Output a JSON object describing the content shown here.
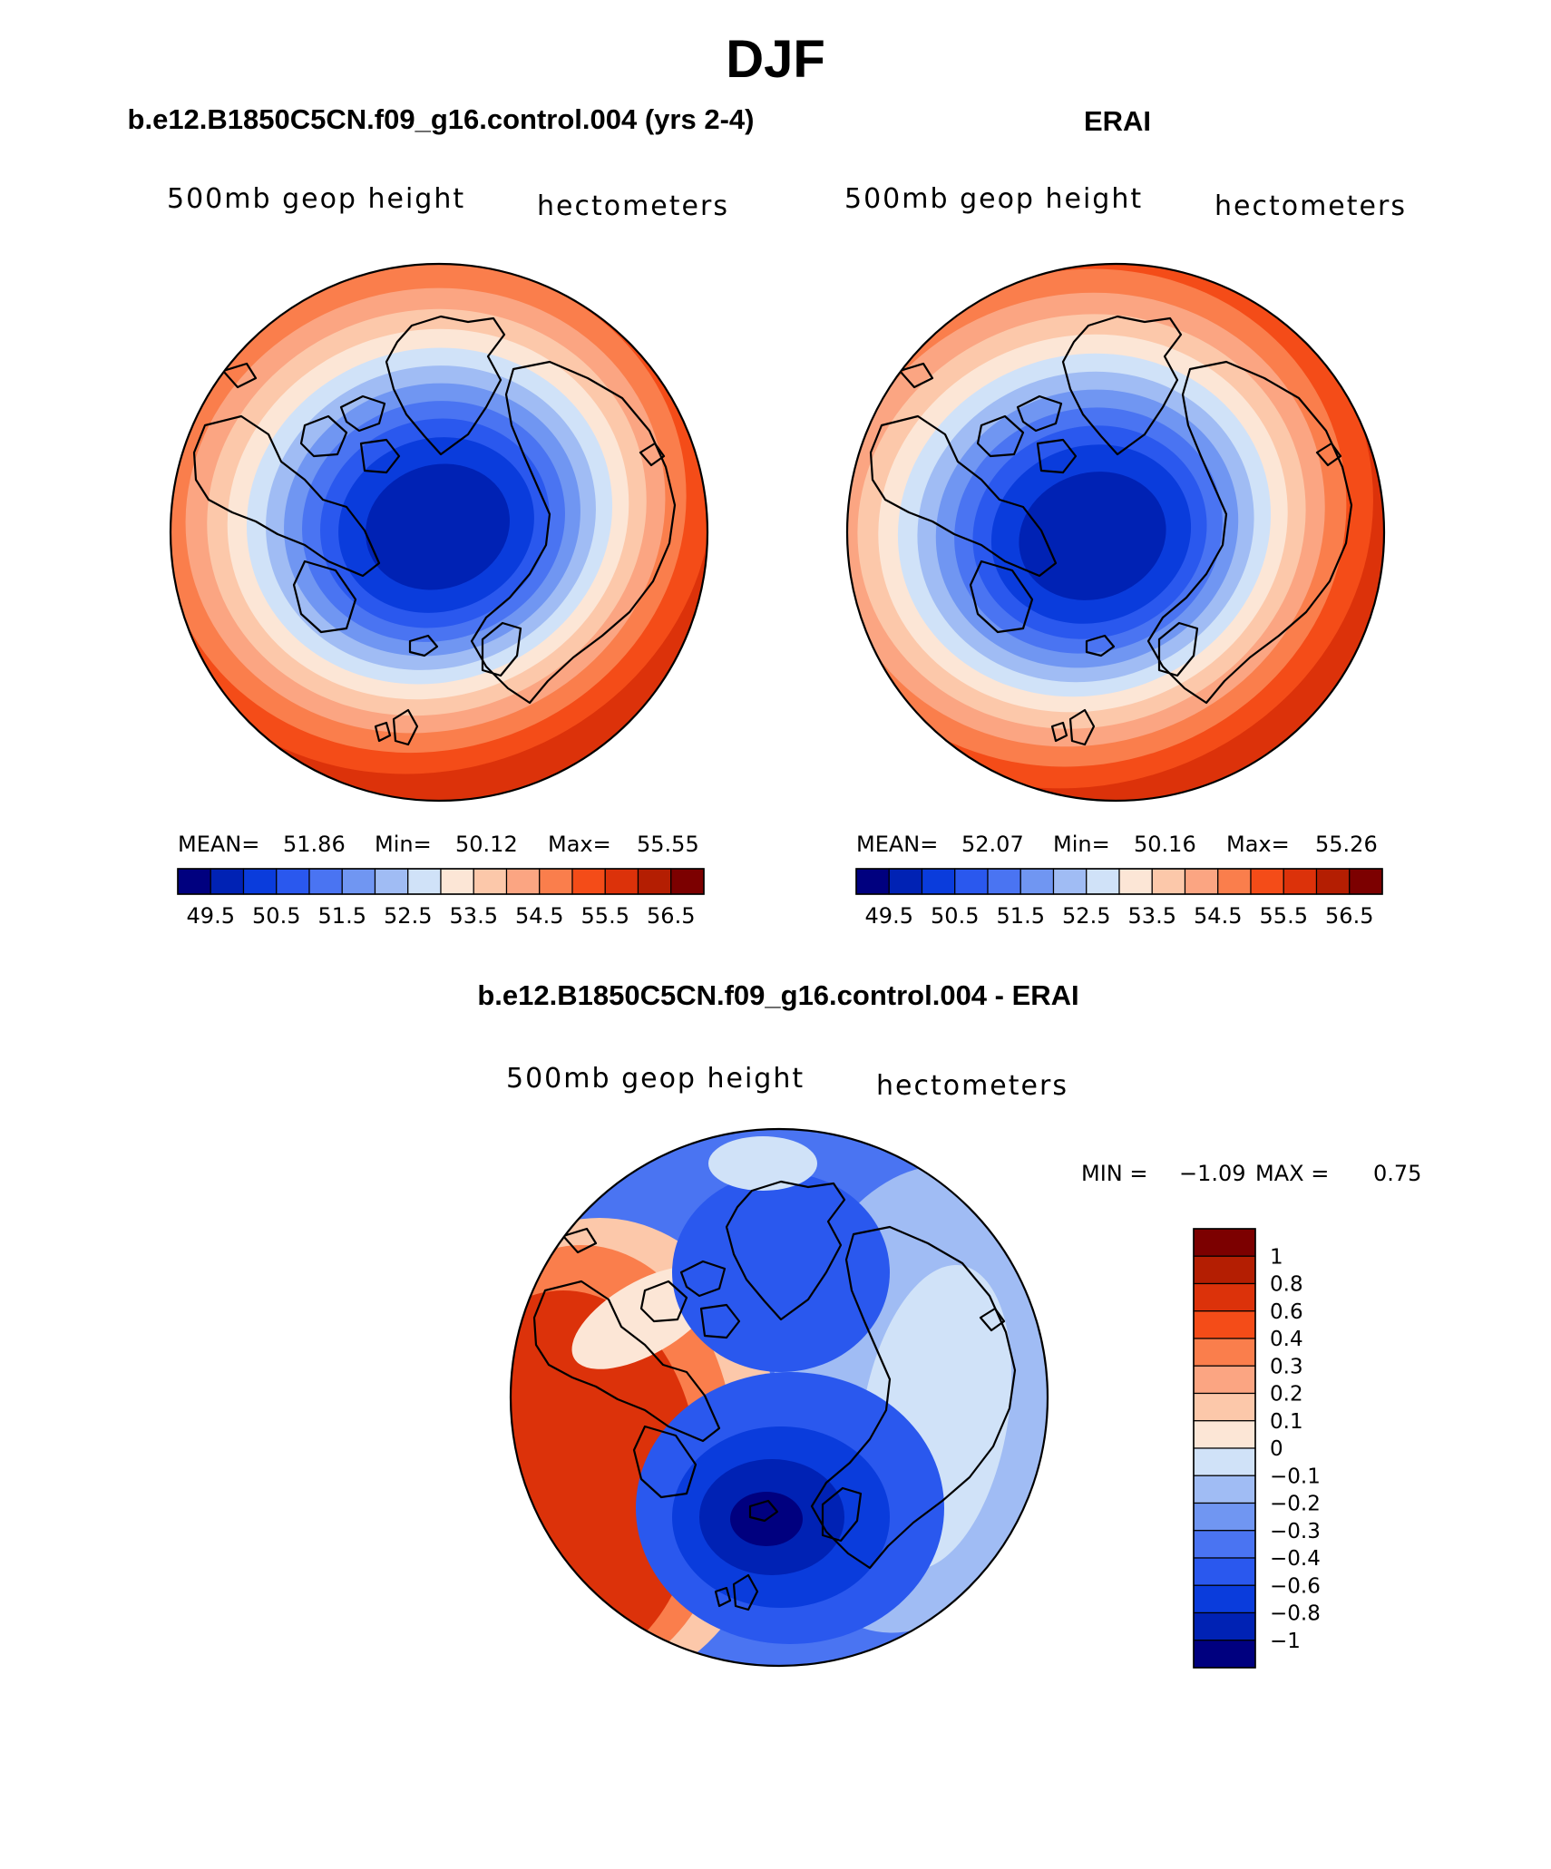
{
  "suptitle": "DJF",
  "panels": [
    {
      "title": "b.e12.B1850C5CN.f09_g16.control.004 (yrs 2-4)",
      "left_label": "500mb geop height",
      "right_label": "hectometers",
      "stats": {
        "mean_label": "MEAN=",
        "mean": "51.86",
        "min_label": "Min=",
        "min": "50.12",
        "max_label": "Max=",
        "max": "55.55"
      }
    },
    {
      "title": "ERAI",
      "left_label": "500mb geop height",
      "right_label": "hectometers",
      "stats": {
        "mean_label": "MEAN=",
        "mean": "52.07",
        "min_label": "Min=",
        "min": "50.16",
        "max_label": "Max=",
        "max": "55.26"
      }
    },
    {
      "title": "b.e12.B1850C5CN.f09_g16.control.004 - ERAI",
      "left_label": "500mb geop height",
      "right_label": "hectometers",
      "stats": {
        "min_label": "MIN =",
        "min": "−1.09",
        "max_label": "MAX =",
        "max": "0.75"
      }
    }
  ],
  "chart_data": [
    {
      "type": "heatmap",
      "projection": "north polar stereographic",
      "title": "b.e12.B1850C5CN.f09_g16.control.004 (yrs 2-4)",
      "variable": "500mb geop height",
      "units": "hectometers",
      "mean": 51.86,
      "min": 50.12,
      "max": 55.55,
      "colorbar_orientation": "horizontal",
      "levels": [
        49.5,
        50,
        50.5,
        51,
        51.5,
        52,
        52.5,
        53,
        53.5,
        54,
        54.5,
        55,
        55.5,
        56,
        56.5
      ],
      "tick_labels": [
        "49.5",
        "50.5",
        "51.5",
        "52.5",
        "53.5",
        "54.5",
        "55.5",
        "56.5"
      ],
      "colors": [
        "#00007f",
        "#0022b4",
        "#0a3cdc",
        "#2a58ee",
        "#4a74f2",
        "#7096f2",
        "#a0bcf4",
        "#d0e2f8",
        "#fce6d6",
        "#fcc8aa",
        "#fba582",
        "#fa7e4c",
        "#f44c18",
        "#dc320a",
        "#b41e02",
        "#7c0000"
      ]
    },
    {
      "type": "heatmap",
      "projection": "north polar stereographic",
      "title": "ERAI",
      "variable": "500mb geop height",
      "units": "hectometers",
      "mean": 52.07,
      "min": 50.16,
      "max": 55.26,
      "colorbar_orientation": "horizontal",
      "levels": [
        49.5,
        50,
        50.5,
        51,
        51.5,
        52,
        52.5,
        53,
        53.5,
        54,
        54.5,
        55,
        55.5,
        56,
        56.5
      ],
      "tick_labels": [
        "49.5",
        "50.5",
        "51.5",
        "52.5",
        "53.5",
        "54.5",
        "55.5",
        "56.5"
      ],
      "colors": [
        "#00007f",
        "#0022b4",
        "#0a3cdc",
        "#2a58ee",
        "#4a74f2",
        "#7096f2",
        "#a0bcf4",
        "#d0e2f8",
        "#fce6d6",
        "#fcc8aa",
        "#fba582",
        "#fa7e4c",
        "#f44c18",
        "#dc320a",
        "#b41e02",
        "#7c0000"
      ]
    },
    {
      "type": "heatmap",
      "projection": "north polar stereographic",
      "title": "b.e12.B1850C5CN.f09_g16.control.004 - ERAI",
      "variable": "500mb geop height",
      "units": "hectometers",
      "min": -1.09,
      "max": 0.75,
      "colorbar_orientation": "vertical",
      "levels": [
        -1,
        -0.8,
        -0.6,
        -0.4,
        -0.3,
        -0.2,
        -0.1,
        0,
        0.1,
        0.2,
        0.3,
        0.4,
        0.6,
        0.8,
        1
      ],
      "tick_labels": [
        "1",
        "0.8",
        "0.6",
        "0.4",
        "0.3",
        "0.2",
        "0.1",
        "0",
        "−0.1",
        "−0.2",
        "−0.3",
        "−0.4",
        "−0.6",
        "−0.8",
        "−1"
      ],
      "colors": [
        "#00007f",
        "#0022b4",
        "#0a3cdc",
        "#2a58ee",
        "#4a74f2",
        "#7096f2",
        "#a0bcf4",
        "#d0e2f8",
        "#fce6d6",
        "#fcc8aa",
        "#fba582",
        "#fa7e4c",
        "#f44c18",
        "#dc320a",
        "#b41e02",
        "#7c0000"
      ]
    }
  ]
}
